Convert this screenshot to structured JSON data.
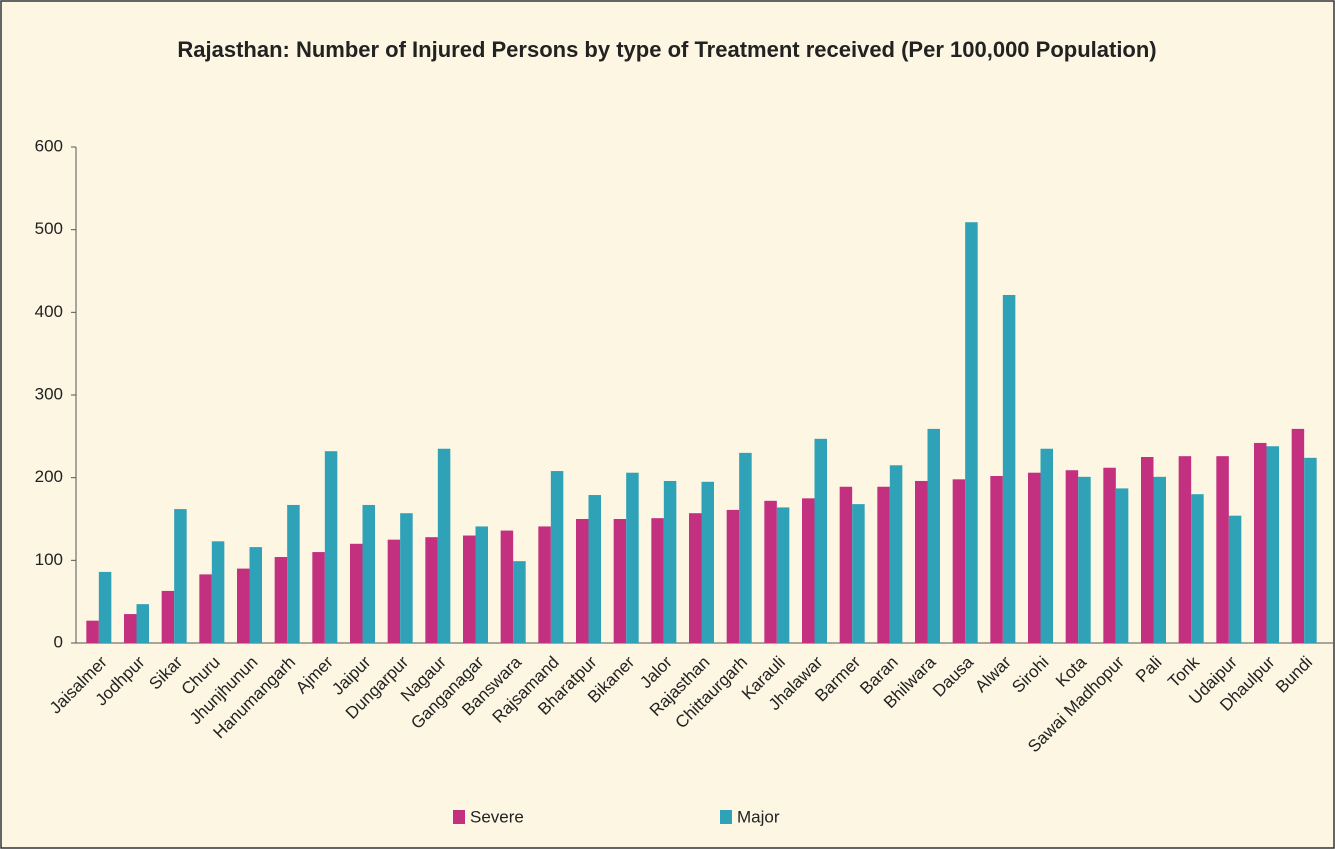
{
  "chart_data": {
    "type": "bar",
    "title": "Rajasthan: Number of Injured Persons by type of Treatment received (Per 100,000 Population)",
    "categories": [
      "Jaisalmer",
      "Jodhpur",
      "Sikar",
      "Churu",
      "Jhunjhunun",
      "Hanumangarh",
      "Ajmer",
      "Jaipur",
      "Dungarpur",
      "Nagaur",
      "Ganganagar",
      "Banswara",
      "Rajsamand",
      "Bharatpur",
      "Bikaner",
      "Jalor",
      "Rajasthan",
      "Chittaurgarh",
      "Karauli",
      "Jhalawar",
      "Barmer",
      "Baran",
      "Bhilwara",
      "Dausa",
      "Alwar",
      "Sirohi",
      "Kota",
      "Sawai Madhopur",
      "Pali",
      "Tonk",
      "Udaipur",
      "Dhaulpur",
      "Bundi"
    ],
    "series": [
      {
        "name": "Severe",
        "color": "#c2307f",
        "values": [
          27,
          35,
          63,
          83,
          90,
          104,
          110,
          120,
          125,
          128,
          130,
          136,
          141,
          150,
          150,
          151,
          157,
          161,
          172,
          175,
          189,
          189,
          196,
          198,
          202,
          206,
          209,
          212,
          225,
          226,
          226,
          242,
          259
        ]
      },
      {
        "name": "Major",
        "color": "#2fa2b7",
        "values": [
          86,
          47,
          162,
          123,
          116,
          167,
          232,
          167,
          157,
          235,
          141,
          99,
          208,
          179,
          206,
          196,
          195,
          230,
          164,
          247,
          168,
          215,
          259,
          509,
          421,
          235,
          201,
          187,
          201,
          180,
          154,
          238,
          224
        ]
      }
    ],
    "ylim": [
      0,
      600
    ],
    "yticks": [
      0,
      100,
      200,
      300,
      400,
      500,
      600
    ],
    "grid": false
  }
}
